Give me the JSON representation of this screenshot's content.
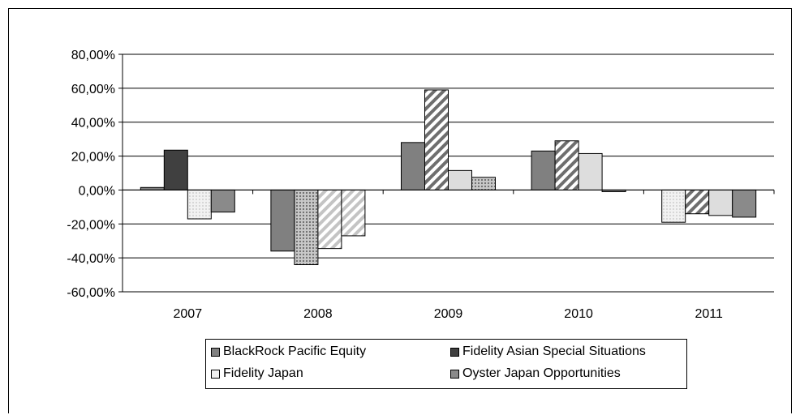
{
  "chart_data": {
    "type": "bar",
    "categories": [
      "2007",
      "2008",
      "2009",
      "2010",
      "2011"
    ],
    "ylim": [
      -60,
      80
    ],
    "yticks": [
      -60,
      -40,
      -20,
      0,
      20,
      40,
      60,
      80
    ],
    "ytick_labels": [
      "-60,00%",
      "-40,00%",
      "-20,00%",
      "0,00%",
      "20,00%",
      "40,00%",
      "60,00%",
      "80,00%"
    ],
    "grid": true,
    "legend_position": "bottom",
    "series": [
      {
        "name": "BlackRock Pacific Equity",
        "color": "#808080",
        "values": [
          1.5,
          -36,
          28,
          23,
          -19
        ]
      },
      {
        "name": "Fidelity Asian Special Situations",
        "color": "#404040",
        "values": [
          23.5,
          -44,
          59,
          29,
          -14
        ]
      },
      {
        "name": "Fidelity Japan",
        "color": "#dddddd",
        "values": [
          -17,
          -34.5,
          11.5,
          21.5,
          -15
        ]
      },
      {
        "name": "Oyster Japan Opportunities",
        "color": "#8a8a8a",
        "values": [
          -13,
          -27,
          7.5,
          -1,
          -16
        ]
      }
    ],
    "bar_styles": [
      [
        "solid",
        "solid",
        "dotted",
        "solid"
      ],
      [
        "solid",
        "dotted",
        "diagonal",
        "diagonal"
      ],
      [
        "solid",
        "diagonal",
        "solid",
        "dotted"
      ],
      [
        "solid",
        "diagonal",
        "solid",
        "solid"
      ],
      [
        "dotted",
        "diagonal",
        "solid",
        "solid"
      ]
    ]
  }
}
